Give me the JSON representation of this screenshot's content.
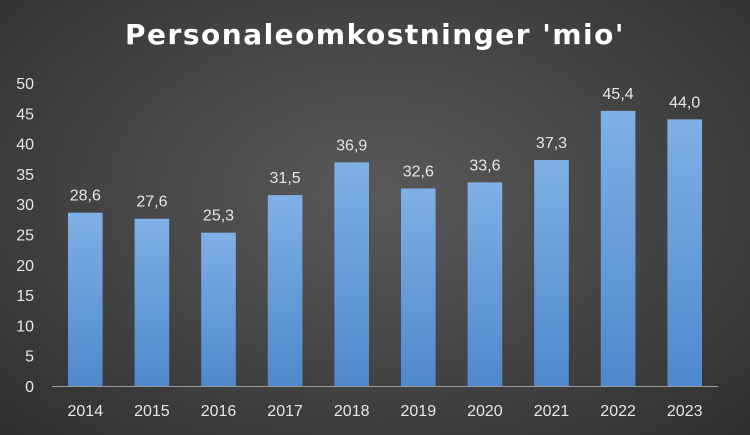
{
  "chart_data": {
    "type": "bar",
    "title": "Personaleomkostninger 'mio'",
    "xlabel": "",
    "ylabel": "",
    "categories": [
      "2014",
      "2015",
      "2016",
      "2017",
      "2018",
      "2019",
      "2020",
      "2021",
      "2022",
      "2023"
    ],
    "values": [
      28.6,
      27.6,
      25.3,
      31.5,
      36.9,
      32.6,
      33.6,
      37.3,
      45.4,
      44.0
    ],
    "data_labels": [
      "28,6",
      "27,6",
      "25,3",
      "31,5",
      "36,9",
      "32,6",
      "33,6",
      "37,3",
      "45,4",
      "44,0"
    ],
    "ylim": [
      0,
      50
    ],
    "yticks": [
      "0",
      "5",
      "10",
      "15",
      "20",
      "25",
      "30",
      "35",
      "40",
      "45",
      "50"
    ],
    "grid": false,
    "legend": "none",
    "colors": {
      "bar_top": "#7fb0e6",
      "bar_bottom": "#4f88cc",
      "axis": "#9a9a9a",
      "background": "#474747"
    }
  }
}
